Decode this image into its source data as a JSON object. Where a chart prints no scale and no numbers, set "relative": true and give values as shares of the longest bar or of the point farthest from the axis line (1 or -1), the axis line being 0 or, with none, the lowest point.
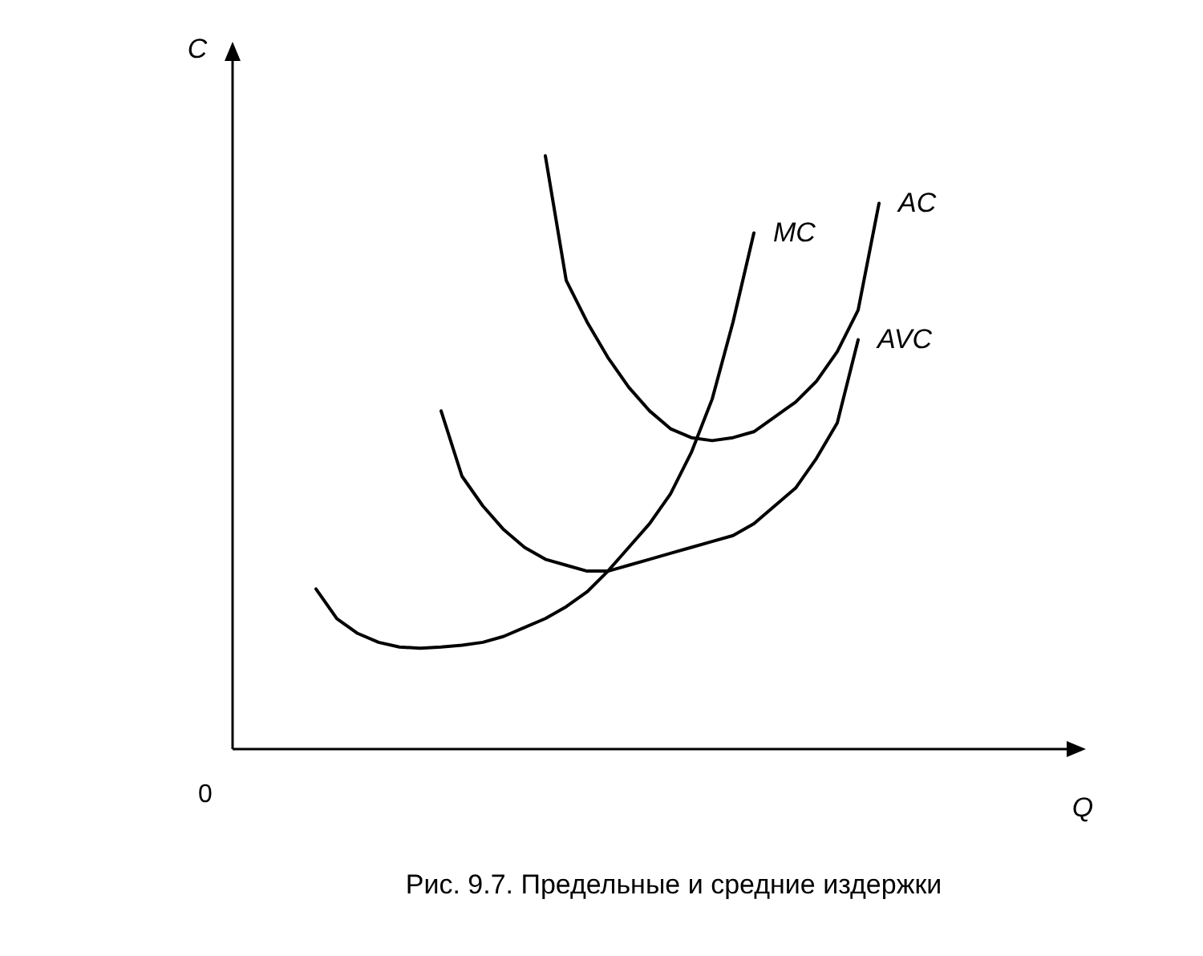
{
  "chart_data": {
    "type": "line",
    "relative": true,
    "xlabel": "Q",
    "ylabel": "C",
    "line_style": "solid",
    "marker": "none",
    "annotations": [
      "0",
      "Рис. 9.7.  Предельные и средние издержки"
    ],
    "categories": [
      null,
      null,
      null,
      null,
      null,
      null,
      null,
      null,
      null,
      null,
      null,
      null,
      null,
      null,
      null,
      null,
      null,
      null,
      null,
      null,
      null,
      null,
      null,
      null,
      null,
      null,
      null,
      null,
      null,
      null,
      null,
      null,
      null,
      null,
      null,
      null,
      null,
      null,
      null,
      null,
      null
    ],
    "series": [
      {
        "name": "MC",
        "color": "#000000",
        "values": [
          null,
          null,
          null,
          null,
          0.27,
          0.22,
          0.195,
          0.18,
          0.172,
          0.17,
          0.172,
          0.175,
          0.18,
          0.19,
          0.205,
          0.22,
          0.24,
          0.265,
          0.3,
          0.34,
          0.38,
          0.43,
          0.5,
          0.59,
          0.72,
          0.87,
          null,
          null,
          null,
          null,
          null,
          null,
          null,
          null,
          null,
          null,
          null,
          null,
          null,
          null,
          null
        ]
      },
      {
        "name": "AVC",
        "color": "#000000",
        "values": [
          null,
          null,
          null,
          null,
          null,
          null,
          null,
          null,
          null,
          null,
          0.57,
          0.46,
          0.41,
          0.37,
          0.34,
          0.32,
          0.31,
          0.3,
          0.3,
          0.31,
          0.32,
          0.33,
          0.34,
          0.35,
          0.36,
          0.38,
          0.41,
          0.44,
          0.49,
          0.55,
          0.69,
          null,
          null,
          null,
          null,
          null,
          null,
          null,
          null,
          null,
          null
        ]
      },
      {
        "name": "AC",
        "color": "#000000",
        "values": [
          null,
          null,
          null,
          null,
          null,
          null,
          null,
          null,
          null,
          null,
          null,
          null,
          null,
          null,
          null,
          1.0,
          0.79,
          0.72,
          0.66,
          0.61,
          0.57,
          0.54,
          0.525,
          0.52,
          0.525,
          0.535,
          0.56,
          0.585,
          0.62,
          0.67,
          0.74,
          0.92,
          null,
          null,
          null,
          null,
          null,
          null,
          null,
          null,
          null
        ]
      }
    ]
  }
}
